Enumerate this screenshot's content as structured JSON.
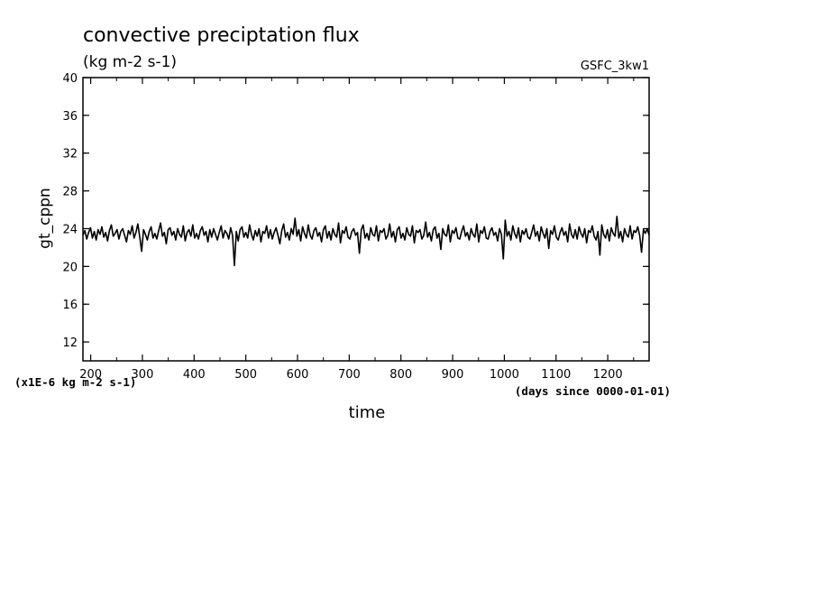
{
  "chart_data": {
    "type": "line",
    "title": "convective preciptation flux",
    "subtitle": "(kg m-2 s-1)",
    "run_label": "GSFC_3kw1",
    "ylabel": "gt_cppn",
    "y_unit_note": "(x1E-6 kg m-2 s-1)",
    "xlabel": "time",
    "x_unit_note": "(days since 0000-01-01)",
    "xlim": [
      185,
      1280
    ],
    "ylim": [
      10,
      40
    ],
    "x_ticks": [
      "200",
      "300",
      "400",
      "500",
      "600",
      "700",
      "800",
      "900",
      "1000",
      "1100",
      "1200"
    ],
    "y_ticks": [
      "12",
      "16",
      "20",
      "24",
      "28",
      "32",
      "36",
      "40"
    ],
    "grid": false,
    "series": [
      {
        "values": [
          23.3,
          23.8,
          22.9,
          23.6,
          24.1,
          23.0,
          23.7,
          22.8,
          23.9,
          23.4,
          24.2,
          23.1,
          23.6,
          22.7,
          23.8,
          24.4,
          23.2,
          23.5,
          23.9,
          22.9,
          23.7,
          24.0,
          23.3,
          22.6,
          23.8,
          23.4,
          24.3,
          23.0,
          23.6,
          24.5,
          23.1,
          21.6,
          23.9,
          23.4,
          22.8,
          23.7,
          24.2,
          23.0,
          23.5,
          22.9,
          23.8,
          24.6,
          23.2,
          23.6,
          22.4,
          23.9,
          24.1,
          23.3,
          23.7,
          22.8,
          24.0,
          23.4,
          23.1,
          24.3,
          22.7,
          23.6,
          23.9,
          23.2,
          24.4,
          23.0,
          23.5,
          22.9,
          23.8,
          24.2,
          23.3,
          23.7,
          22.6,
          23.9,
          23.1,
          24.0,
          23.4,
          22.8,
          23.6,
          24.3,
          23.0,
          23.8,
          23.5,
          22.9,
          24.1,
          23.3,
          20.1,
          23.7,
          22.7,
          23.9,
          24.2,
          23.1,
          23.6,
          23.0,
          24.4,
          23.4,
          22.8,
          23.8,
          23.2,
          24.0,
          22.6,
          23.7,
          23.5,
          24.3,
          23.0,
          23.9,
          22.9,
          23.6,
          24.1,
          23.3,
          22.4,
          23.8,
          24.5,
          23.1,
          23.6,
          22.8,
          24.0,
          23.4,
          25.1,
          23.2,
          23.9,
          22.7,
          24.2,
          23.5,
          23.0,
          24.4,
          23.3,
          22.9,
          23.8,
          24.1,
          23.2,
          23.6,
          22.6,
          23.9,
          24.3,
          23.0,
          23.7,
          22.8,
          24.0,
          23.4,
          23.1,
          24.6,
          22.5,
          23.8,
          23.5,
          24.2,
          23.1,
          22.9,
          23.7,
          24.0,
          23.3,
          23.6,
          21.4,
          23.9,
          24.4,
          23.0,
          23.5,
          22.8,
          24.1,
          23.4,
          23.2,
          24.3,
          22.7,
          23.8,
          23.6,
          24.0,
          22.9,
          23.3,
          24.5,
          23.1,
          23.7,
          22.6,
          23.9,
          24.2,
          23.0,
          23.5,
          22.8,
          24.1,
          23.4,
          23.2,
          24.3,
          22.5,
          23.8,
          23.6,
          23.9,
          22.9,
          23.3,
          24.7,
          23.1,
          23.6,
          22.7,
          23.9,
          24.2,
          23.0,
          23.5,
          21.8,
          24.0,
          23.4,
          23.2,
          24.4,
          22.6,
          23.8,
          23.5,
          24.1,
          23.0,
          22.9,
          23.7,
          24.3,
          23.2,
          23.6,
          22.8,
          24.0,
          23.4,
          23.1,
          24.5,
          22.6,
          23.8,
          23.5,
          24.2,
          23.0,
          22.9,
          23.7,
          24.1,
          23.3,
          23.6,
          22.7,
          24.0,
          23.4,
          20.8,
          24.9,
          23.2,
          23.7,
          22.8,
          24.3,
          23.5,
          23.0,
          24.1,
          22.6,
          23.8,
          23.4,
          24.0,
          23.1,
          22.9,
          23.6,
          24.4,
          23.2,
          23.7,
          22.7,
          24.2,
          23.5,
          23.0,
          24.0,
          21.9,
          23.8,
          23.4,
          24.3,
          23.1,
          22.8,
          23.6,
          24.1,
          23.3,
          23.7,
          22.6,
          24.5,
          23.4,
          23.0,
          23.9,
          22.9,
          24.2,
          23.5,
          23.1,
          24.0,
          22.5,
          23.8,
          23.6,
          24.3,
          23.2,
          22.8,
          23.7,
          21.2,
          24.4,
          23.4,
          23.0,
          23.9,
          22.7,
          24.1,
          23.5,
          23.2,
          25.3,
          23.0,
          23.7,
          22.6,
          24.0,
          23.4,
          23.1,
          24.3,
          22.9,
          23.8,
          23.6,
          24.2,
          23.3,
          21.5,
          23.9,
          23.5,
          24.0,
          23.3
        ]
      }
    ]
  }
}
